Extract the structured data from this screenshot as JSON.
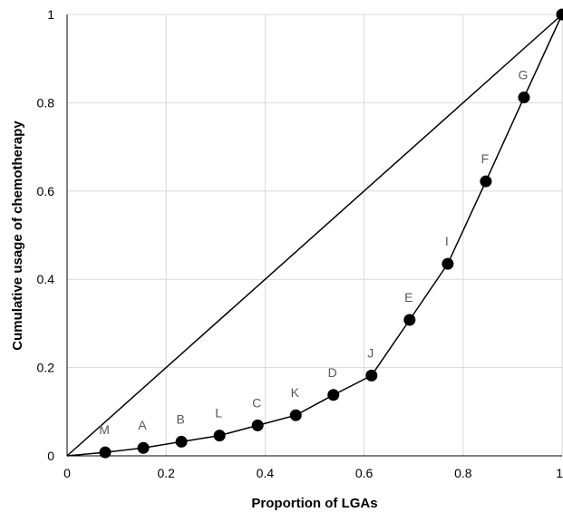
{
  "chart_data": {
    "type": "line",
    "title": "",
    "xlabel": "Proportion of LGAs",
    "ylabel": "Cumulative usage of chemotherapy",
    "xlim": [
      0,
      1
    ],
    "ylim": [
      0,
      1
    ],
    "grid": true,
    "legend": "none",
    "x_ticks": [
      "0",
      "0.2",
      "0.4",
      "0.6",
      "0.8",
      "1"
    ],
    "y_ticks": [
      "0",
      "0.2",
      "0.4",
      "0.6",
      "0.8",
      "1"
    ],
    "colors": {
      "line": "#000000",
      "grid": "#d9d9d9",
      "point_label": "#595959"
    },
    "series": [
      {
        "type": "line-markers",
        "x": [
          0,
          0.077,
          0.154,
          0.231,
          0.308,
          0.385,
          0.462,
          0.538,
          0.615,
          0.692,
          0.769,
          0.846,
          0.923,
          1
        ],
        "y": [
          0,
          0.008,
          0.018,
          0.032,
          0.046,
          0.069,
          0.092,
          0.138,
          0.182,
          0.308,
          0.435,
          0.622,
          0.812,
          1
        ],
        "labels": [
          "",
          "M",
          "A",
          "B",
          "L",
          "C",
          "K",
          "D",
          "J",
          "E",
          "I",
          "F",
          "G",
          ""
        ]
      },
      {
        "type": "reference-line",
        "x": [
          0,
          1
        ],
        "y": [
          0,
          1
        ]
      }
    ]
  }
}
